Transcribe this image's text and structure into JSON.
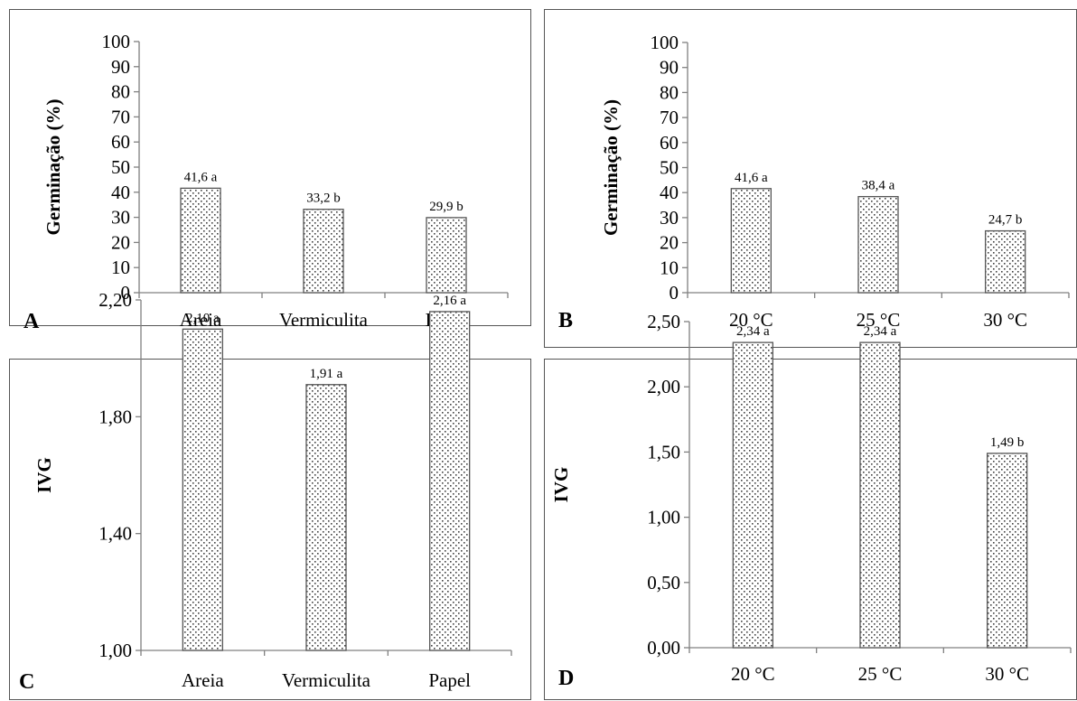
{
  "chart_data": [
    {
      "id": "A",
      "type": "bar",
      "panel_letter": "A",
      "ylabel": "Germinação  (%)",
      "categories": [
        "Areia",
        "Vermiculita",
        "Papel"
      ],
      "values": [
        41.6,
        33.2,
        29.9
      ],
      "data_labels": [
        "41,6 a",
        "33,2 b",
        "29,9 b"
      ],
      "ylim": [
        0,
        100
      ],
      "yticks": [
        "0",
        "10",
        "20",
        "30",
        "40",
        "50",
        "60",
        "70",
        "80",
        "90",
        "100"
      ],
      "ytick_values": [
        0,
        10,
        20,
        30,
        40,
        50,
        60,
        70,
        80,
        90,
        100
      ],
      "grid": false
    },
    {
      "id": "B",
      "type": "bar",
      "panel_letter": "B",
      "ylabel": "Germinação  (%)",
      "categories": [
        "20 °C",
        "25 °C",
        "30 °C"
      ],
      "values": [
        41.6,
        38.4,
        24.7
      ],
      "data_labels": [
        "41,6 a",
        "38,4 a",
        "24,7 b"
      ],
      "ylim": [
        0,
        100
      ],
      "yticks": [
        "0",
        "10",
        "20",
        "30",
        "40",
        "50",
        "60",
        "70",
        "80",
        "90",
        "100"
      ],
      "ytick_values": [
        0,
        10,
        20,
        30,
        40,
        50,
        60,
        70,
        80,
        90,
        100
      ],
      "grid": false
    },
    {
      "id": "C",
      "type": "bar",
      "panel_letter": "C",
      "ylabel": "IVG",
      "categories": [
        "Areia",
        "Vermiculita",
        "Papel"
      ],
      "values": [
        2.1,
        1.91,
        2.16
      ],
      "data_labels": [
        "2,10 a",
        "1,91 a",
        "2,16 a"
      ],
      "ylim": [
        1.0,
        2.2
      ],
      "yticks": [
        "1,00",
        "1,40",
        "1,80",
        "2,20"
      ],
      "ytick_values": [
        1.0,
        1.4,
        1.8,
        2.2
      ],
      "grid": false
    },
    {
      "id": "D",
      "type": "bar",
      "panel_letter": "D",
      "ylabel": "IVG",
      "categories": [
        "20 °C",
        "25 °C",
        "30 °C"
      ],
      "values": [
        2.34,
        2.34,
        1.49
      ],
      "data_labels": [
        "2,34 a",
        "2,34 a",
        "1,49 b"
      ],
      "ylim": [
        0,
        2.5
      ],
      "yticks": [
        "0,00",
        "0,50",
        "1,00",
        "1,50",
        "2,00",
        "2,50"
      ],
      "ytick_values": [
        0,
        0.5,
        1.0,
        1.5,
        2.0,
        2.5
      ],
      "grid": false
    }
  ]
}
